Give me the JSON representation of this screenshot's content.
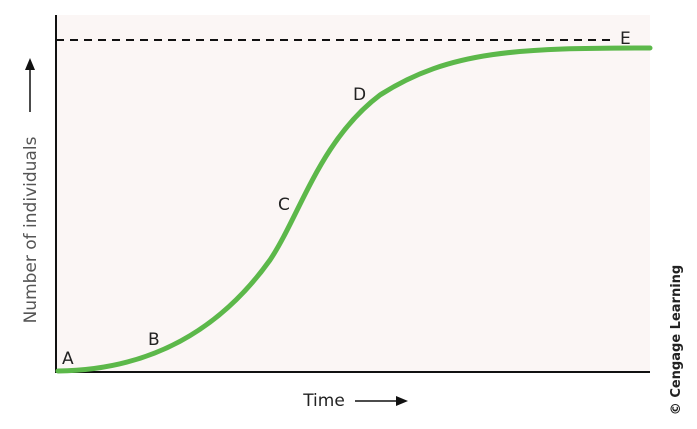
{
  "diagram": {
    "y_axis_label": "Number of individuals",
    "x_axis_label": "Time",
    "points": [
      {
        "label": "A"
      },
      {
        "label": "B"
      },
      {
        "label": "C"
      },
      {
        "label": "D"
      },
      {
        "label": "E"
      }
    ],
    "credit": "© Cengage Learning"
  }
}
